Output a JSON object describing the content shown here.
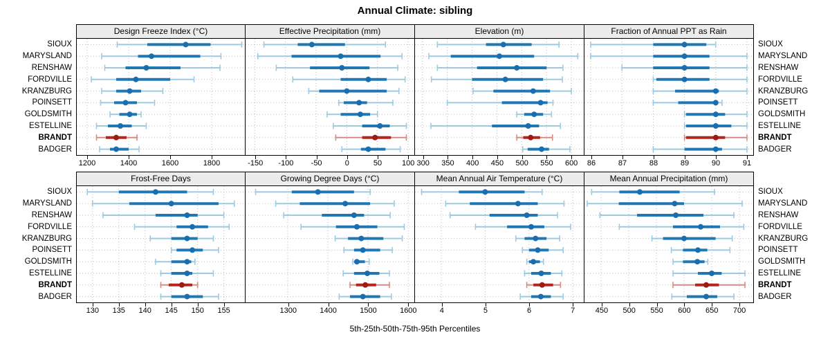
{
  "chart_data": {
    "type": "scatter",
    "subtype": "lattice-percentile-interval-dotplot",
    "title": "Annual Climate: sibling",
    "caption": "5th-25th-50th-75th-95th Percentiles",
    "percentiles": [
      5,
      25,
      50,
      75,
      95
    ],
    "sites": [
      "SIOUX",
      "MARYSLAND",
      "RENSHAW",
      "FORDVILLE",
      "KRANZBURG",
      "POINSETT",
      "GOLDSMITH",
      "ESTELLINE",
      "BRANDT",
      "BADGER"
    ],
    "highlight_site": "BRANDT",
    "legend_position": "none",
    "grid": "dotted",
    "colors": {
      "series_main": "#1f77b4",
      "series_light": "#9ecae1",
      "median_dot": "#1a6ead",
      "highlight_main": "#b5251c",
      "highlight_light": "#d68b83",
      "highlight_dot": "#9c1c13",
      "strip_bg": "#ececec",
      "grid_line": "#b8b8b8",
      "border": "#000000"
    },
    "panels": [
      {
        "title": "Design Freeze Index (°C)",
        "row": 0,
        "xlim": [
          1150,
          1960
        ],
        "ticks": [
          1200,
          1400,
          1600,
          1800
        ],
        "values": [
          [
            1345,
            1490,
            1675,
            1795,
            1945
          ],
          [
            1270,
            1445,
            1510,
            1745,
            1845
          ],
          [
            1285,
            1385,
            1485,
            1650,
            1840
          ],
          [
            1220,
            1340,
            1435,
            1600,
            1715
          ],
          [
            1270,
            1340,
            1405,
            1460,
            1565
          ],
          [
            1265,
            1330,
            1385,
            1440,
            1525
          ],
          [
            1310,
            1355,
            1405,
            1440,
            1460
          ],
          [
            1245,
            1300,
            1360,
            1415,
            1485
          ],
          [
            1245,
            1290,
            1340,
            1390,
            1440
          ],
          [
            1260,
            1310,
            1340,
            1400,
            1450
          ]
        ]
      },
      {
        "title": "Effective Precipitation (mm)",
        "row": 0,
        "xlim": [
          -165,
          110
        ],
        "ticks": [
          -150,
          -100,
          -50,
          0,
          50,
          100
        ],
        "values": [
          [
            -135,
            -80,
            -57,
            -3,
            63
          ],
          [
            -145,
            -90,
            -10,
            55,
            90
          ],
          [
            -115,
            -60,
            -8,
            37,
            83
          ],
          [
            -88,
            -10,
            35,
            65,
            95
          ],
          [
            -62,
            -45,
            0,
            65,
            85
          ],
          [
            -13,
            -5,
            20,
            33,
            75
          ],
          [
            -32,
            -10,
            22,
            38,
            50
          ],
          [
            -22,
            25,
            54,
            70,
            97
          ],
          [
            -18,
            25,
            46,
            72,
            97
          ],
          [
            -8,
            23,
            35,
            63,
            87
          ]
        ]
      },
      {
        "title": "Elevation (m)",
        "row": 0,
        "xlim": [
          285,
          625
        ],
        "ticks": [
          300,
          350,
          400,
          450,
          500,
          550,
          600
        ],
        "values": [
          [
            330,
            428,
            463,
            520,
            575
          ],
          [
            313,
            357,
            455,
            525,
            613
          ],
          [
            330,
            410,
            490,
            550,
            583
          ],
          [
            318,
            400,
            467,
            543,
            582
          ],
          [
            402,
            443,
            523,
            557,
            600
          ],
          [
            350,
            460,
            538,
            552,
            563
          ],
          [
            490,
            505,
            525,
            543,
            560
          ],
          [
            317,
            440,
            513,
            535,
            578
          ],
          [
            490,
            503,
            518,
            537,
            562
          ],
          [
            502,
            512,
            540,
            555,
            597
          ]
        ]
      },
      {
        "title": "Fraction of Annual PPT as Rain",
        "row": 0,
        "xlim": [
          85.8,
          91.2
        ],
        "ticks": [
          86,
          87,
          88,
          89,
          90,
          91
        ],
        "values": [
          [
            86,
            88,
            89,
            89.7,
            90
          ],
          [
            86,
            88,
            89,
            89.8,
            91
          ],
          [
            87,
            88,
            89,
            89.8,
            91
          ],
          [
            88,
            88.1,
            89,
            89.8,
            91
          ],
          [
            88,
            88.7,
            90,
            90.1,
            91
          ],
          [
            88,
            88.8,
            90,
            90.05,
            90.2
          ],
          [
            89,
            89.05,
            90,
            90.3,
            91
          ],
          [
            89,
            89.05,
            90,
            90.5,
            91
          ],
          [
            89,
            89.05,
            90,
            90.3,
            91
          ],
          [
            88,
            89,
            90,
            90.2,
            91
          ]
        ]
      },
      {
        "title": "Frost-Free Days",
        "row": 1,
        "xlim": [
          127,
          159
        ],
        "ticks": [
          130,
          135,
          140,
          145,
          150,
          155
        ],
        "values": [
          [
            129,
            135,
            142,
            148,
            153
          ],
          [
            130,
            137,
            145,
            154,
            157
          ],
          [
            132,
            142,
            148,
            150,
            155
          ],
          [
            138,
            146,
            149,
            152,
            156
          ],
          [
            141,
            145,
            148,
            150,
            153
          ],
          [
            145,
            146,
            149,
            151,
            154
          ],
          [
            142,
            145,
            148,
            148.8,
            149.5
          ],
          [
            143,
            145,
            148,
            149,
            153
          ],
          [
            143,
            144.5,
            147,
            149,
            150
          ],
          [
            143,
            145,
            148,
            151,
            154
          ]
        ]
      },
      {
        "title": "Growing Degree Days (°C)",
        "row": 1,
        "xlim": [
          1195,
          1615
        ],
        "ticks": [
          1300,
          1400,
          1500,
          1600
        ],
        "values": [
          [
            1220,
            1310,
            1375,
            1465,
            1505
          ],
          [
            1270,
            1330,
            1443,
            1505,
            1565
          ],
          [
            1290,
            1385,
            1465,
            1490,
            1555
          ],
          [
            1333,
            1420,
            1472,
            1523,
            1590
          ],
          [
            1418,
            1450,
            1483,
            1538,
            1585
          ],
          [
            1440,
            1465,
            1487,
            1530,
            1560
          ],
          [
            1462,
            1468,
            1472,
            1492,
            1503
          ],
          [
            1438,
            1465,
            1498,
            1528,
            1553
          ],
          [
            1455,
            1470,
            1493,
            1520,
            1553
          ],
          [
            1428,
            1455,
            1487,
            1530,
            1558
          ]
        ]
      },
      {
        "title": "Mean Annual Air Temperature (°C)",
        "row": 1,
        "xlim": [
          3.4,
          7.25
        ],
        "ticks": [
          4,
          5,
          6,
          7
        ],
        "values": [
          [
            3.55,
            4.4,
            5.0,
            5.9,
            6.3
          ],
          [
            4.1,
            4.65,
            5.75,
            6.2,
            6.8
          ],
          [
            4.2,
            5.1,
            5.95,
            6.2,
            6.65
          ],
          [
            4.78,
            5.5,
            6.05,
            6.35,
            6.95
          ],
          [
            5.7,
            5.9,
            6.15,
            6.4,
            6.7
          ],
          [
            5.85,
            6.0,
            6.2,
            6.45,
            6.78
          ],
          [
            5.95,
            6.0,
            6.1,
            6.25,
            6.33
          ],
          [
            5.9,
            6.05,
            6.28,
            6.5,
            6.75
          ],
          [
            5.95,
            6.1,
            6.3,
            6.55,
            6.72
          ],
          [
            5.8,
            6.05,
            6.27,
            6.5,
            6.78
          ]
        ]
      },
      {
        "title": "Mean Annual Precipitation (mm)",
        "row": 1,
        "xlim": [
          420,
          725
        ],
        "ticks": [
          450,
          500,
          550,
          600,
          650,
          700
        ],
        "values": [
          [
            433,
            483,
            520,
            592,
            655
          ],
          [
            425,
            482,
            583,
            600,
            705
          ],
          [
            448,
            515,
            585,
            635,
            690
          ],
          [
            483,
            580,
            630,
            665,
            708
          ],
          [
            542,
            562,
            600,
            657,
            687
          ],
          [
            577,
            598,
            625,
            642,
            683
          ],
          [
            580,
            598,
            624,
            637,
            643
          ],
          [
            580,
            625,
            650,
            668,
            710
          ],
          [
            580,
            620,
            640,
            663,
            710
          ],
          [
            578,
            605,
            640,
            660,
            690
          ]
        ]
      }
    ]
  }
}
